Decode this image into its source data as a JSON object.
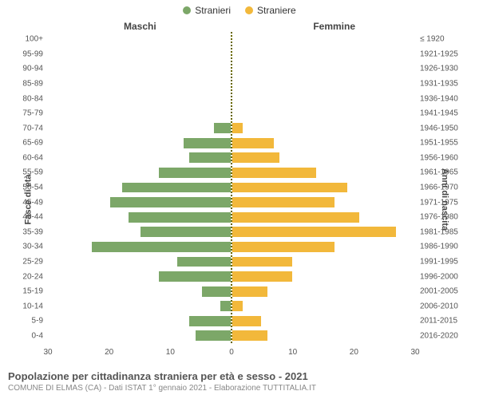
{
  "chart": {
    "type": "population-pyramid",
    "legend": [
      {
        "label": "Stranieri",
        "color": "#7ca768"
      },
      {
        "label": "Straniere",
        "color": "#f2b83b"
      }
    ],
    "column_titles": {
      "left": "Maschi",
      "right": "Femmine"
    },
    "y_axis_label_left": "Fasce di età",
    "y_axis_label_right": "Anni di nascita",
    "x_max": 30,
    "x_ticks_left": [
      30,
      20,
      10,
      0
    ],
    "x_ticks_right": [
      0,
      10,
      20,
      30
    ],
    "bar_color_left": "#7ca768",
    "bar_color_right": "#f2b83b",
    "bar_border": "#ffffff",
    "center_line_color": "#666600",
    "rows": [
      {
        "age": "100+",
        "birth": "≤ 1920",
        "m": 0,
        "f": 0
      },
      {
        "age": "95-99",
        "birth": "1921-1925",
        "m": 0,
        "f": 0
      },
      {
        "age": "90-94",
        "birth": "1926-1930",
        "m": 0,
        "f": 0
      },
      {
        "age": "85-89",
        "birth": "1931-1935",
        "m": 0,
        "f": 0
      },
      {
        "age": "80-84",
        "birth": "1936-1940",
        "m": 0,
        "f": 0
      },
      {
        "age": "75-79",
        "birth": "1941-1945",
        "m": 0,
        "f": 0
      },
      {
        "age": "70-74",
        "birth": "1946-1950",
        "m": 3,
        "f": 2
      },
      {
        "age": "65-69",
        "birth": "1951-1955",
        "m": 8,
        "f": 7
      },
      {
        "age": "60-64",
        "birth": "1956-1960",
        "m": 7,
        "f": 8
      },
      {
        "age": "55-59",
        "birth": "1961-1965",
        "m": 12,
        "f": 14
      },
      {
        "age": "50-54",
        "birth": "1966-1970",
        "m": 18,
        "f": 19
      },
      {
        "age": "45-49",
        "birth": "1971-1975",
        "m": 20,
        "f": 17
      },
      {
        "age": "40-44",
        "birth": "1976-1980",
        "m": 17,
        "f": 21
      },
      {
        "age": "35-39",
        "birth": "1981-1985",
        "m": 15,
        "f": 27
      },
      {
        "age": "30-34",
        "birth": "1986-1990",
        "m": 23,
        "f": 17
      },
      {
        "age": "25-29",
        "birth": "1991-1995",
        "m": 9,
        "f": 10
      },
      {
        "age": "20-24",
        "birth": "1996-2000",
        "m": 12,
        "f": 10
      },
      {
        "age": "15-19",
        "birth": "2001-2005",
        "m": 5,
        "f": 6
      },
      {
        "age": "10-14",
        "birth": "2006-2010",
        "m": 2,
        "f": 2
      },
      {
        "age": "5-9",
        "birth": "2011-2015",
        "m": 7,
        "f": 5
      },
      {
        "age": "0-4",
        "birth": "2016-2020",
        "m": 6,
        "f": 6
      }
    ]
  },
  "footer": {
    "title": "Popolazione per cittadinanza straniera per età e sesso - 2021",
    "subtitle": "COMUNE DI ELMAS (CA) - Dati ISTAT 1° gennaio 2021 - Elaborazione TUTTITALIA.IT"
  }
}
